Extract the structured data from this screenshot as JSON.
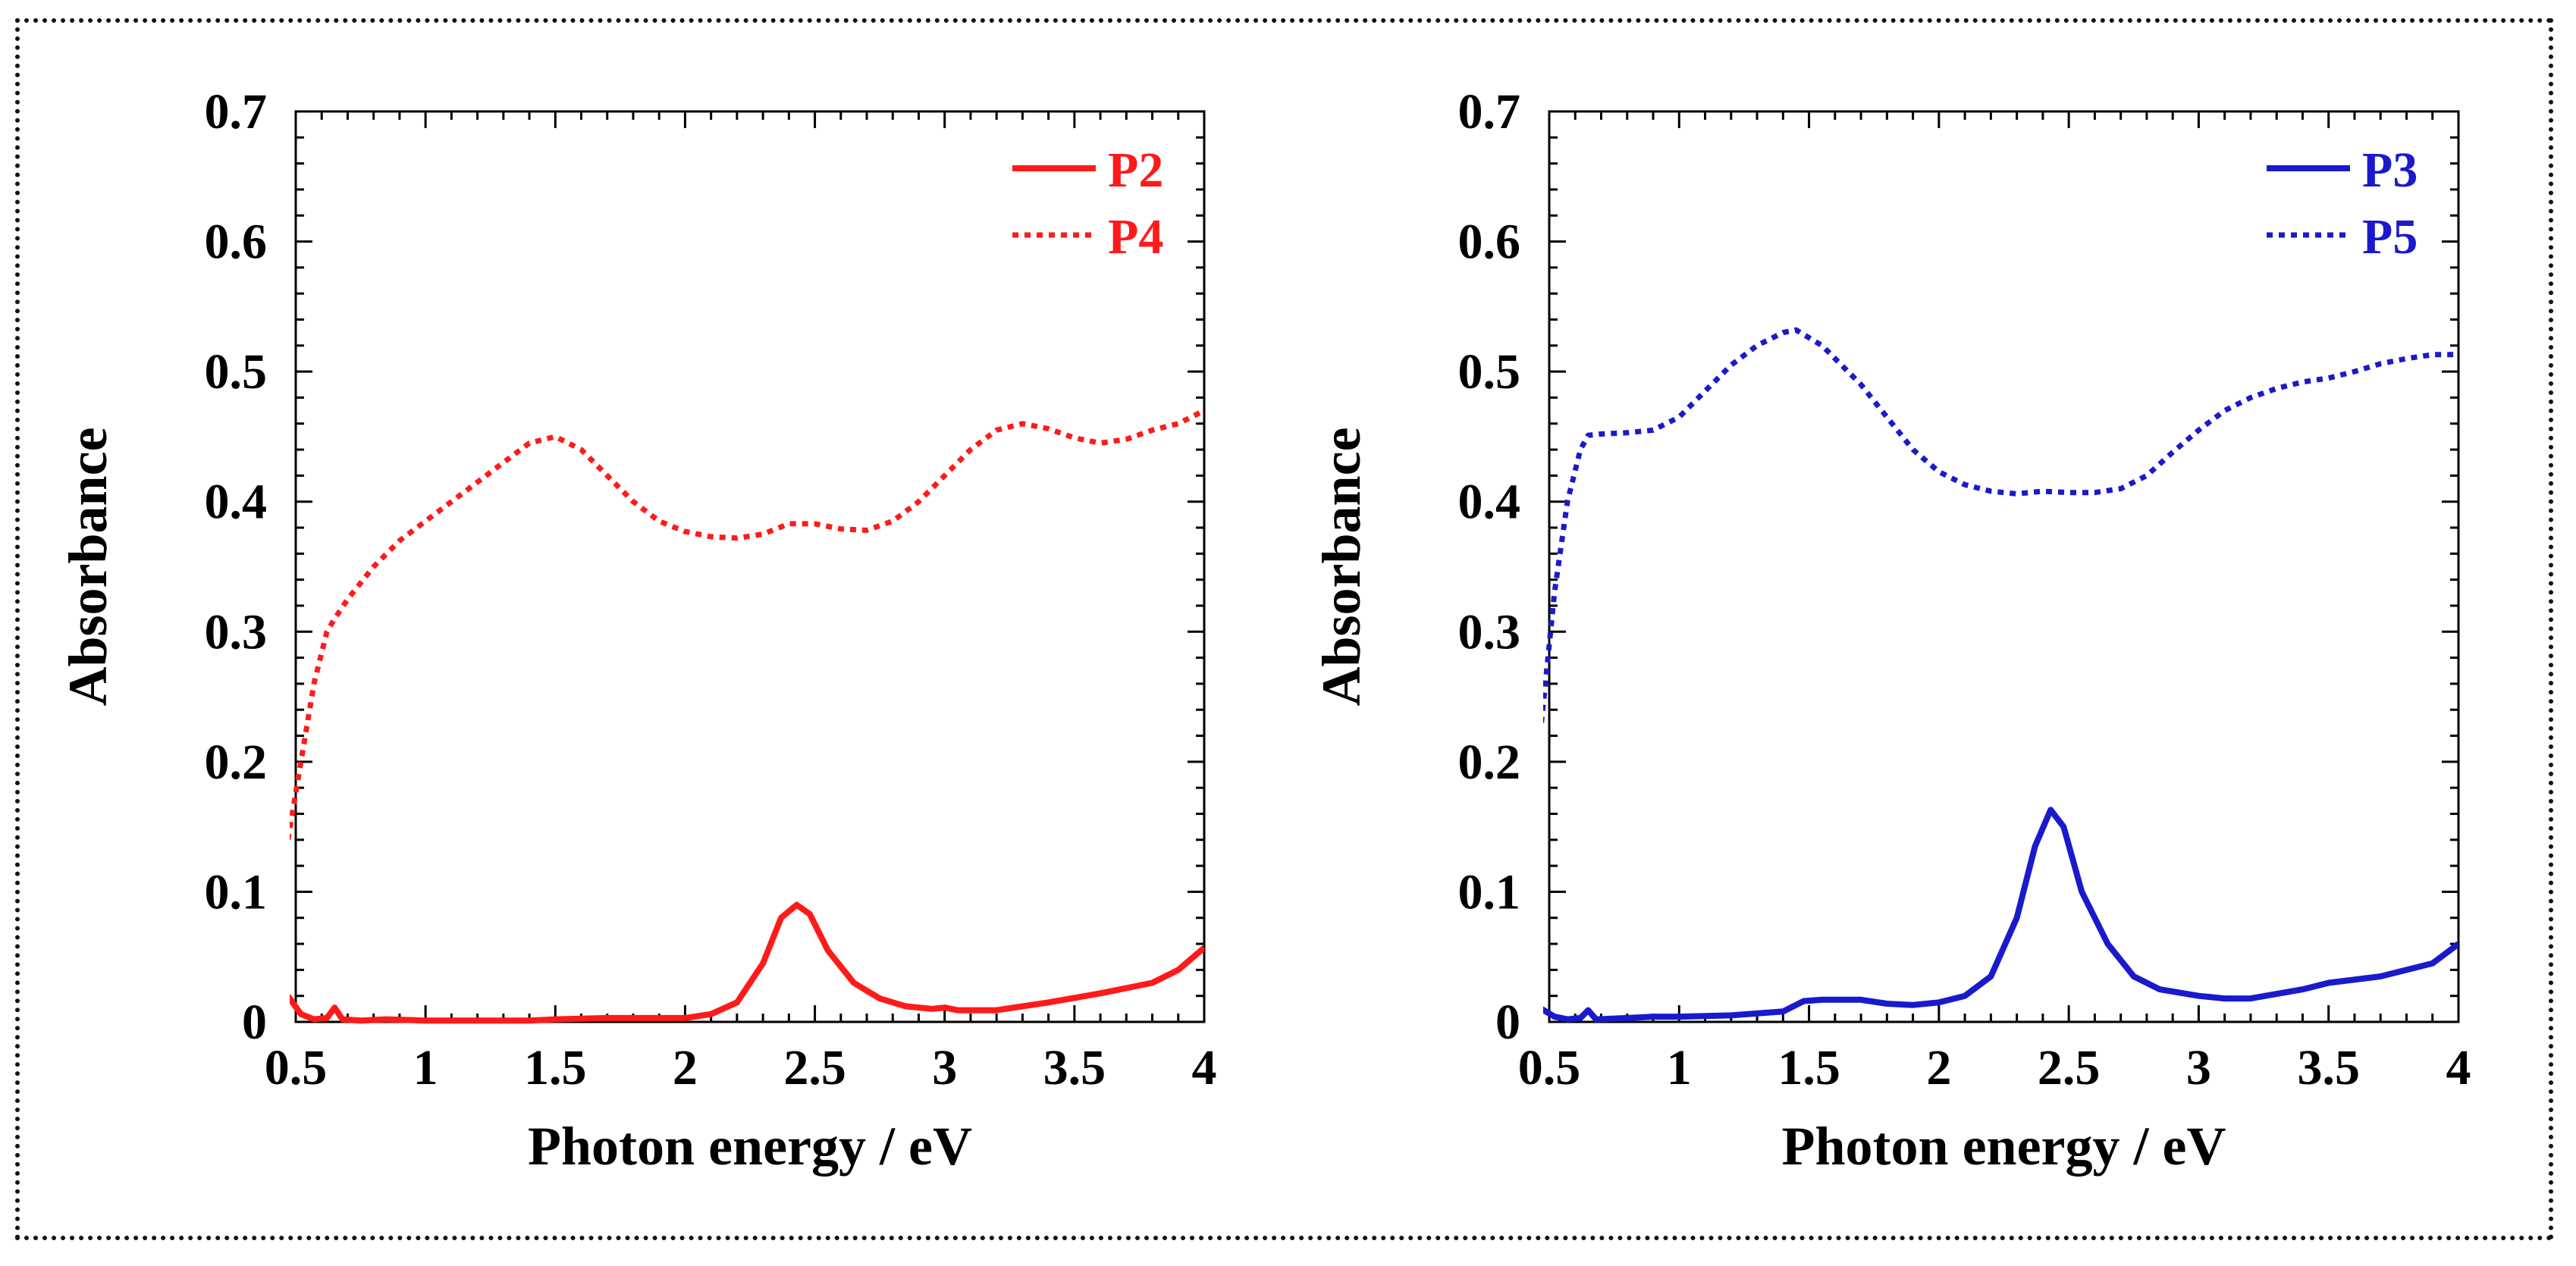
{
  "chart_data": [
    {
      "type": "line",
      "title": "",
      "xlabel": "Photon energy / eV",
      "ylabel": "Absorbance",
      "xlim": [
        0.5,
        4
      ],
      "ylim": [
        0,
        0.7
      ],
      "x_ticks": [
        "0.5",
        "1",
        "1.5",
        "2",
        "2.5",
        "3",
        "3.5",
        "4"
      ],
      "y_ticks": [
        "0",
        "0.1",
        "0.2",
        "0.3",
        "0.4",
        "0.5",
        "0.6",
        "0.7"
      ],
      "legend_position": "top-right",
      "series": [
        {
          "name": "P2",
          "color": "#ff1a1a",
          "style": "solid",
          "points": [
            [
              0.47,
              0.02
            ],
            [
              0.52,
              0.006
            ],
            [
              0.57,
              0.002
            ],
            [
              0.62,
              0.003
            ],
            [
              0.65,
              0.011
            ],
            [
              0.68,
              0.002
            ],
            [
              0.75,
              0.001
            ],
            [
              0.85,
              0.002
            ],
            [
              1.0,
              0.001
            ],
            [
              1.2,
              0.001
            ],
            [
              1.4,
              0.001
            ],
            [
              1.5,
              0.002
            ],
            [
              1.7,
              0.003
            ],
            [
              1.9,
              0.003
            ],
            [
              2.0,
              0.003
            ],
            [
              2.1,
              0.006
            ],
            [
              2.2,
              0.015
            ],
            [
              2.3,
              0.045
            ],
            [
              2.37,
              0.08
            ],
            [
              2.43,
              0.09
            ],
            [
              2.48,
              0.083
            ],
            [
              2.55,
              0.055
            ],
            [
              2.65,
              0.03
            ],
            [
              2.75,
              0.018
            ],
            [
              2.85,
              0.012
            ],
            [
              2.95,
              0.01
            ],
            [
              3.0,
              0.011
            ],
            [
              3.05,
              0.009
            ],
            [
              3.2,
              0.009
            ],
            [
              3.4,
              0.015
            ],
            [
              3.6,
              0.022
            ],
            [
              3.8,
              0.03
            ],
            [
              3.9,
              0.04
            ],
            [
              4.0,
              0.057
            ]
          ]
        },
        {
          "name": "P4",
          "color": "#ff1a1a",
          "style": "dotted",
          "points": [
            [
              0.47,
              0.14
            ],
            [
              0.52,
              0.2
            ],
            [
              0.57,
              0.26
            ],
            [
              0.62,
              0.3
            ],
            [
              0.65,
              0.31
            ],
            [
              0.7,
              0.325
            ],
            [
              0.8,
              0.35
            ],
            [
              0.9,
              0.37
            ],
            [
              1.0,
              0.385
            ],
            [
              1.1,
              0.4
            ],
            [
              1.2,
              0.415
            ],
            [
              1.3,
              0.43
            ],
            [
              1.4,
              0.445
            ],
            [
              1.5,
              0.45
            ],
            [
              1.6,
              0.44
            ],
            [
              1.7,
              0.42
            ],
            [
              1.8,
              0.4
            ],
            [
              1.9,
              0.385
            ],
            [
              2.0,
              0.377
            ],
            [
              2.1,
              0.373
            ],
            [
              2.2,
              0.372
            ],
            [
              2.3,
              0.375
            ],
            [
              2.4,
              0.383
            ],
            [
              2.5,
              0.383
            ],
            [
              2.6,
              0.379
            ],
            [
              2.7,
              0.378
            ],
            [
              2.8,
              0.385
            ],
            [
              2.9,
              0.4
            ],
            [
              3.0,
              0.42
            ],
            [
              3.1,
              0.44
            ],
            [
              3.2,
              0.455
            ],
            [
              3.3,
              0.46
            ],
            [
              3.4,
              0.456
            ],
            [
              3.5,
              0.449
            ],
            [
              3.6,
              0.445
            ],
            [
              3.7,
              0.448
            ],
            [
              3.8,
              0.455
            ],
            [
              3.9,
              0.46
            ],
            [
              4.0,
              0.47
            ]
          ]
        }
      ]
    },
    {
      "type": "line",
      "title": "",
      "xlabel": "Photon energy / eV",
      "ylabel": "Absorbance",
      "xlim": [
        0.5,
        4
      ],
      "ylim": [
        0,
        0.7
      ],
      "x_ticks": [
        "0.5",
        "1",
        "1.5",
        "2",
        "2.5",
        "3",
        "3.5",
        "4"
      ],
      "y_ticks": [
        "0",
        "0.1",
        "0.2",
        "0.3",
        "0.4",
        "0.5",
        "0.6",
        "0.7"
      ],
      "legend_position": "top-right",
      "series": [
        {
          "name": "P3",
          "color": "#1a1acc",
          "style": "solid",
          "points": [
            [
              0.47,
              0.01
            ],
            [
              0.52,
              0.004
            ],
            [
              0.57,
              0.002
            ],
            [
              0.62,
              0.003
            ],
            [
              0.65,
              0.009
            ],
            [
              0.68,
              0.002
            ],
            [
              0.8,
              0.003
            ],
            [
              0.9,
              0.004
            ],
            [
              1.0,
              0.004
            ],
            [
              1.2,
              0.005
            ],
            [
              1.4,
              0.008
            ],
            [
              1.48,
              0.016
            ],
            [
              1.55,
              0.017
            ],
            [
              1.7,
              0.017
            ],
            [
              1.8,
              0.014
            ],
            [
              1.9,
              0.013
            ],
            [
              2.0,
              0.015
            ],
            [
              2.1,
              0.02
            ],
            [
              2.2,
              0.035
            ],
            [
              2.3,
              0.08
            ],
            [
              2.37,
              0.135
            ],
            [
              2.43,
              0.163
            ],
            [
              2.48,
              0.15
            ],
            [
              2.55,
              0.1
            ],
            [
              2.65,
              0.06
            ],
            [
              2.75,
              0.035
            ],
            [
              2.85,
              0.025
            ],
            [
              3.0,
              0.02
            ],
            [
              3.1,
              0.018
            ],
            [
              3.2,
              0.018
            ],
            [
              3.4,
              0.025
            ],
            [
              3.5,
              0.03
            ],
            [
              3.7,
              0.035
            ],
            [
              3.9,
              0.045
            ],
            [
              4.0,
              0.06
            ]
          ]
        },
        {
          "name": "P5",
          "color": "#1a1acc",
          "style": "dotted",
          "points": [
            [
              0.47,
              0.23
            ],
            [
              0.52,
              0.33
            ],
            [
              0.57,
              0.4
            ],
            [
              0.62,
              0.44
            ],
            [
              0.65,
              0.451
            ],
            [
              0.7,
              0.452
            ],
            [
              0.8,
              0.453
            ],
            [
              0.9,
              0.455
            ],
            [
              1.0,
              0.465
            ],
            [
              1.1,
              0.485
            ],
            [
              1.2,
              0.505
            ],
            [
              1.3,
              0.52
            ],
            [
              1.4,
              0.53
            ],
            [
              1.45,
              0.532
            ],
            [
              1.55,
              0.52
            ],
            [
              1.7,
              0.49
            ],
            [
              1.8,
              0.465
            ],
            [
              1.9,
              0.44
            ],
            [
              2.0,
              0.423
            ],
            [
              2.1,
              0.413
            ],
            [
              2.2,
              0.408
            ],
            [
              2.3,
              0.406
            ],
            [
              2.4,
              0.408
            ],
            [
              2.5,
              0.407
            ],
            [
              2.6,
              0.407
            ],
            [
              2.7,
              0.41
            ],
            [
              2.8,
              0.42
            ],
            [
              2.9,
              0.438
            ],
            [
              3.0,
              0.455
            ],
            [
              3.1,
              0.47
            ],
            [
              3.2,
              0.48
            ],
            [
              3.3,
              0.487
            ],
            [
              3.4,
              0.492
            ],
            [
              3.5,
              0.495
            ],
            [
              3.6,
              0.5
            ],
            [
              3.7,
              0.506
            ],
            [
              3.8,
              0.51
            ],
            [
              3.9,
              0.513
            ],
            [
              4.0,
              0.513
            ]
          ]
        }
      ]
    }
  ]
}
